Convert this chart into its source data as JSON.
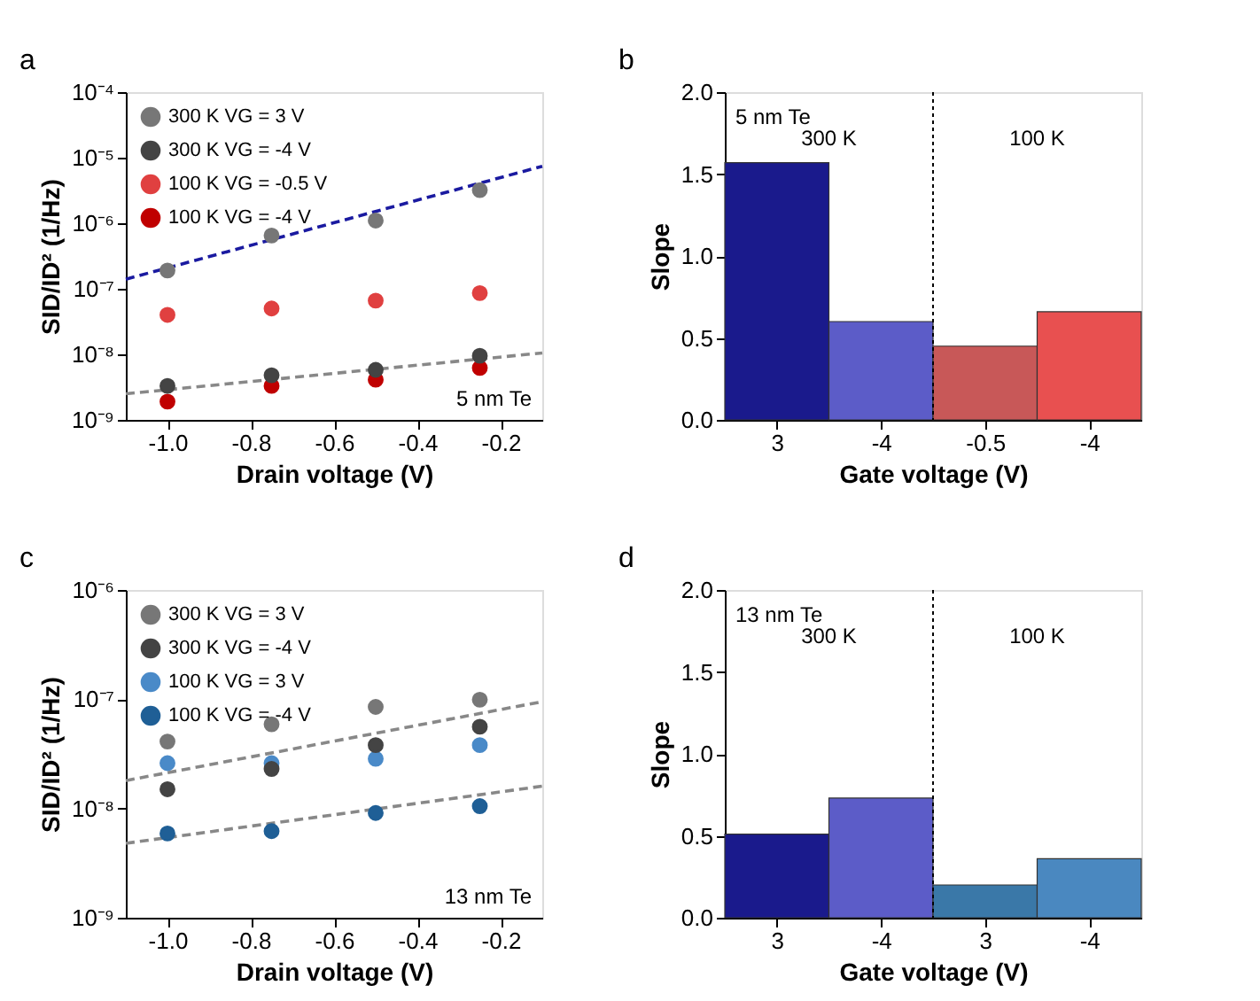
{
  "chart_data": [
    {
      "type": "scatter",
      "xlabel": "Drain voltage (V)",
      "ylabel": "SID/ID² (1/Hz)",
      "log": true,
      "legend": "top left",
      "grid": false,
      "xlim": [
        -1.1,
        -0.1
      ],
      "xticks": [
        {
          "value": -1.0,
          "label": "-1.0"
        },
        {
          "value": -0.8,
          "label": "-0.8"
        },
        {
          "value": -0.6,
          "label": "-0.6"
        },
        {
          "value": -0.4,
          "label": "-0.4"
        },
        {
          "value": -0.2,
          "label": "-0.2"
        }
      ],
      "ylim": [
        1e-09,
        0.0001
      ],
      "yticks": [
        {
          "value": 1e-09,
          "label": "10⁻⁹"
        },
        {
          "value": 1e-08,
          "label": "10⁻⁸"
        },
        {
          "value": 1e-07,
          "label": "10⁻⁷"
        },
        {
          "value": 1e-06,
          "label": "10⁻⁶"
        },
        {
          "value": 1e-05,
          "label": "10⁻⁵"
        },
        {
          "value": 0.0001,
          "label": "10⁻⁴"
        }
      ],
      "annotations": [
        "a",
        "5 nm Te"
      ],
      "series": [
        {
          "type": "line",
          "color": "#1a1aa0",
          "line_style": "dashed",
          "x": [
            -1.1,
            -0.1
          ],
          "values": [
            1.4e-07,
            7.4e-06
          ]
        },
        {
          "type": "line",
          "color": "#888888",
          "line_style": "dashed",
          "x": [
            -1.1,
            -0.1
          ],
          "values": [
            2.5e-09,
            1.05e-08
          ]
        },
        {
          "name": "300 K VG = 3 V",
          "color": "#777777",
          "marker": "circle",
          "x": [
            -1.0,
            -0.75,
            -0.5,
            -0.25
          ],
          "values": [
            1.9e-07,
            6.5e-07,
            1.1e-06,
            3.2e-06
          ]
        },
        {
          "name": "300 K VG = -4 V",
          "color": "#444444",
          "marker": "circle",
          "x": [
            -1.0,
            -0.75,
            -0.5,
            -0.25
          ],
          "values": [
            3.3e-09,
            4.8e-09,
            5.8e-09,
            9.5e-09
          ]
        },
        {
          "name": "100 K VG = -0.5 V",
          "color": "#e04040",
          "marker": "circle",
          "x": [
            -1.0,
            -0.75,
            -0.5,
            -0.25
          ],
          "values": [
            4e-08,
            5e-08,
            6.6e-08,
            8.6e-08
          ]
        },
        {
          "name": "100 K VG = -4 V",
          "color": "#c00000",
          "marker": "circle",
          "x": [
            -1.0,
            -0.75,
            -0.5,
            -0.25
          ],
          "values": [
            1.9e-09,
            3.3e-09,
            4.1e-09,
            6.2e-09
          ]
        }
      ]
    },
    {
      "type": "bar",
      "xlabel": "Gate voltage (V)",
      "ylabel": "Slope",
      "categories": [
        "3",
        "-4",
        "-0.5",
        "-4"
      ],
      "values": [
        1.57,
        0.6,
        0.45,
        0.66
      ],
      "colors": [
        "#1a1a8c",
        "#5c5cc8",
        "#c85858",
        "#e85050"
      ],
      "ylim": [
        0,
        2
      ],
      "yticks": [
        {
          "value": 0,
          "label": "0.0"
        },
        {
          "value": 0.5,
          "label": "0.5"
        },
        {
          "value": 1,
          "label": "1.0"
        },
        {
          "value": 1.5,
          "label": "1.5"
        },
        {
          "value": 2,
          "label": "2.0"
        }
      ],
      "annotations": [
        "b",
        "5 nm Te",
        "300 K",
        "100 K"
      ]
    },
    {
      "type": "scatter",
      "xlabel": "Drain voltage (V)",
      "ylabel": "SID/ID² (1/Hz)",
      "log": true,
      "legend": "top left",
      "grid": false,
      "xlim": [
        -1.1,
        -0.1
      ],
      "xticks": [
        {
          "value": -1.0,
          "label": "-1.0"
        },
        {
          "value": -0.8,
          "label": "-0.8"
        },
        {
          "value": -0.6,
          "label": "-0.6"
        },
        {
          "value": -0.4,
          "label": "-0.4"
        },
        {
          "value": -0.2,
          "label": "-0.2"
        }
      ],
      "ylim": [
        1e-09,
        1e-06
      ],
      "yticks": [
        {
          "value": 1e-09,
          "label": "10⁻⁹"
        },
        {
          "value": 1e-08,
          "label": "10⁻⁸"
        },
        {
          "value": 1e-07,
          "label": "10⁻⁷"
        },
        {
          "value": 1e-06,
          "label": "10⁻⁶"
        }
      ],
      "annotations": [
        "c",
        "13 nm Te"
      ],
      "series": [
        {
          "type": "line",
          "color": "#888888",
          "line_style": "dashed",
          "x": [
            -1.1,
            -0.1
          ],
          "values": [
            1.8e-08,
            9.5e-08
          ]
        },
        {
          "type": "line",
          "color": "#888888",
          "line_style": "dashed",
          "x": [
            -1.1,
            -0.1
          ],
          "values": [
            4.8e-09,
            1.6e-08
          ]
        },
        {
          "name": "300 K VG = 3 V",
          "color": "#777777",
          "marker": "circle",
          "x": [
            -1.0,
            -0.75,
            -0.5,
            -0.25
          ],
          "values": [
            4.1e-08,
            5.9e-08,
            8.5e-08,
            9.9e-08
          ]
        },
        {
          "name": "300 K VG = -4 V",
          "color": "#444444",
          "marker": "circle",
          "x": [
            -1.0,
            -0.75,
            -0.5,
            -0.25
          ],
          "values": [
            1.5e-08,
            2.3e-08,
            3.8e-08,
            5.6e-08
          ]
        },
        {
          "name": "100 K VG = 3 V",
          "color": "#4a8ac8",
          "marker": "circle",
          "x": [
            -1.0,
            -0.75,
            -0.5,
            -0.25
          ],
          "values": [
            2.6e-08,
            2.6e-08,
            2.85e-08,
            3.8e-08
          ]
        },
        {
          "name": "100 K VG = -4 V",
          "color": "#1f5f96",
          "marker": "circle",
          "x": [
            -1.0,
            -0.75,
            -0.5,
            -0.25
          ],
          "values": [
            5.9e-09,
            6.2e-09,
            9.1e-09,
            1.05e-08
          ]
        }
      ]
    },
    {
      "type": "bar",
      "xlabel": "Gate voltage (V)",
      "ylabel": "Slope",
      "categories": [
        "3",
        "-4",
        "3",
        "-4"
      ],
      "values": [
        0.51,
        0.73,
        0.2,
        0.36
      ],
      "colors": [
        "#1a1a8c",
        "#5c5cc8",
        "#3a78a8",
        "#4a88c0"
      ],
      "ylim": [
        0,
        2
      ],
      "yticks": [
        {
          "value": 0,
          "label": "0.0"
        },
        {
          "value": 0.5,
          "label": "0.5"
        },
        {
          "value": 1,
          "label": "1.0"
        },
        {
          "value": 1.5,
          "label": "1.5"
        },
        {
          "value": 2,
          "label": "2.0"
        }
      ],
      "annotations": [
        "d",
        "13 nm Te",
        "300 K",
        "100 K"
      ]
    }
  ]
}
